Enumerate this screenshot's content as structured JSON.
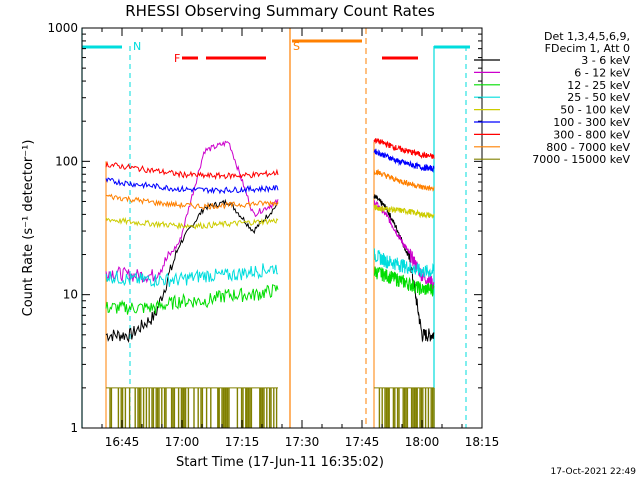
{
  "chart_data": {
    "type": "line",
    "title": "RHESSI Observing Summary Count Rates",
    "xlabel": "Start Time (17-Jun-11 16:35:02)",
    "ylabel": "Count Rate (s⁻¹ detector⁻¹)",
    "yscale": "log",
    "xlim_minutes": [
      0,
      100
    ],
    "ylim": [
      1,
      1000
    ],
    "x_ticks": [
      {
        "minute": 10,
        "label": "16:45"
      },
      {
        "minute": 25,
        "label": "17:00"
      },
      {
        "minute": 40,
        "label": "17:15"
      },
      {
        "minute": 55,
        "label": "17:30"
      },
      {
        "minute": 70,
        "label": "17:45"
      },
      {
        "minute": 85,
        "label": "18:00"
      },
      {
        "minute": 100,
        "label": "18:15"
      }
    ],
    "y_ticks": [
      {
        "value": 1,
        "label": "1"
      },
      {
        "value": 10,
        "label": "10"
      },
      {
        "value": 100,
        "label": "100"
      },
      {
        "value": 1000,
        "label": "1000"
      }
    ],
    "legend_header": [
      "Det 1,3,4,5,6,9,",
      "FDecim 1, Att 0"
    ],
    "series": [
      {
        "name": "3 - 6 keV",
        "color": "#000000",
        "seg1": [
          5,
          5,
          7,
          24,
          45,
          50,
          30,
          48
        ],
        "seg2": [
          55,
          45,
          30,
          18,
          5,
          5
        ]
      },
      {
        "name": "6 - 12 keV",
        "color": "#cc00cc",
        "seg1": [
          15,
          14,
          14,
          25,
          120,
          140,
          40,
          50
        ],
        "seg2": [
          50,
          40,
          28,
          20,
          14,
          12
        ]
      },
      {
        "name": "12 - 25 keV",
        "color": "#00dd00",
        "seg1": [
          8,
          8,
          8,
          9,
          9,
          10,
          10,
          11
        ],
        "seg2": [
          15,
          14,
          13,
          12,
          11,
          11
        ]
      },
      {
        "name": "25 - 50 keV",
        "color": "#00dddd",
        "seg1": [
          14,
          13,
          13,
          13,
          14,
          14,
          15,
          16
        ],
        "seg2": [
          20,
          18,
          17,
          16,
          15,
          15
        ]
      },
      {
        "name": "50 - 100 keV",
        "color": "#cccc00",
        "seg1": [
          37,
          35,
          34,
          33,
          33,
          34,
          35,
          36
        ],
        "seg2": [
          45,
          44,
          43,
          42,
          40,
          39
        ]
      },
      {
        "name": "100 - 300 keV",
        "color": "#0000ff",
        "seg1": [
          72,
          68,
          65,
          62,
          61,
          61,
          62,
          63
        ],
        "seg2": [
          120,
          110,
          100,
          95,
          90,
          88
        ]
      },
      {
        "name": "300 - 800 keV",
        "color": "#ff0000",
        "seg1": [
          95,
          90,
          85,
          80,
          78,
          78,
          79,
          82
        ],
        "seg2": [
          145,
          135,
          125,
          118,
          112,
          108
        ]
      },
      {
        "name": "800 - 7000 keV",
        "color": "#ff8000",
        "seg1": [
          55,
          52,
          49,
          47,
          46,
          47,
          48,
          49
        ],
        "seg2": [
          85,
          78,
          72,
          68,
          64,
          62
        ]
      },
      {
        "name": "7000 - 15000 keV",
        "color": "#808000",
        "seg1": [
          2,
          2,
          2,
          2,
          2,
          2,
          2,
          2
        ],
        "seg2": [
          2,
          2,
          2,
          2,
          2,
          2
        ]
      }
    ],
    "annotations": [
      {
        "label": "N",
        "minute": 12,
        "color": "#00dddd"
      },
      {
        "label": "F",
        "minute": 25,
        "color": "#ff0000"
      },
      {
        "label": "S",
        "minute": 52,
        "color": "#ff8000"
      }
    ],
    "timestamp": "17-Oct-2021 22:49"
  }
}
